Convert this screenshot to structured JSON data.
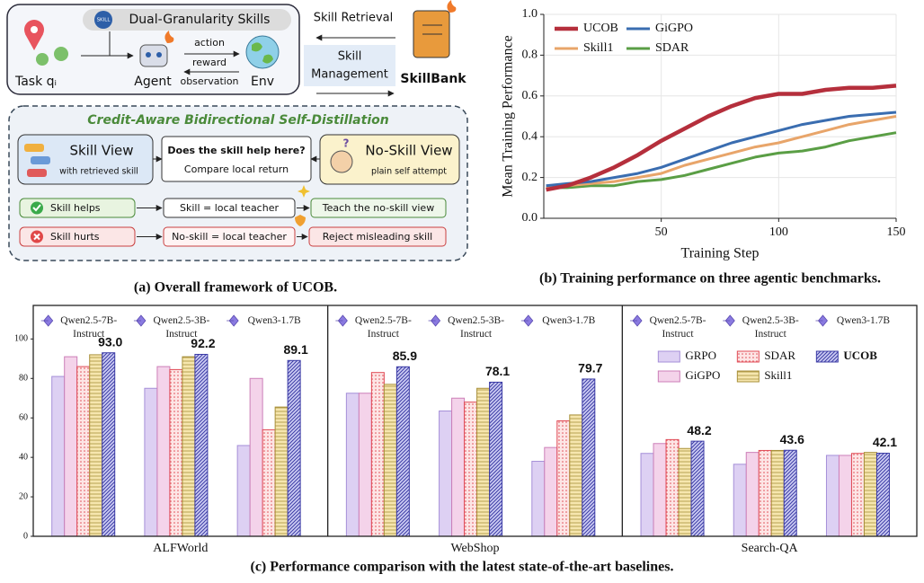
{
  "diagram": {
    "caption": "(a) Overall framework of UCOB.",
    "skills_header": "Dual-Granularity Skills",
    "skill_badge": "SKILL",
    "task": "Task qᵢ",
    "agent": "Agent",
    "env": "Env",
    "action": "action",
    "reward": "reward",
    "observation": "observation",
    "skill_retrieval": "Skill Retrieval",
    "skill_management": [
      "Skill",
      "Management"
    ],
    "skillbank": "SkillBank",
    "distillation_title": "Credit-Aware Bidirectional Self-Distillation",
    "skill_view": {
      "title": "Skill View",
      "subtitle": "with retrieved skill"
    },
    "question": {
      "title": "Does the skill help here?",
      "subtitle": "Compare local return"
    },
    "no_skill_view": {
      "title": "No-Skill View",
      "subtitle": "plain self attempt"
    },
    "rows": [
      [
        "Skill helps",
        "Skill = local teacher",
        "Teach the no-skill view"
      ],
      [
        "Skill hurts",
        "No-skill = local teacher",
        "Reject misleading skill"
      ]
    ]
  },
  "chart_data": [
    {
      "type": "line",
      "caption": "(b) Training performance on three agentic benchmarks.",
      "xlabel": "Training Step",
      "ylabel": "Mean Training Performance",
      "x": [
        1,
        10,
        20,
        30,
        40,
        50,
        60,
        70,
        80,
        90,
        100,
        110,
        120,
        130,
        140,
        150
      ],
      "series": [
        {
          "name": "UCOB",
          "color": "#b52f3c",
          "linewidth": 4.5,
          "values": [
            0.14,
            0.16,
            0.2,
            0.25,
            0.31,
            0.38,
            0.44,
            0.5,
            0.55,
            0.59,
            0.61,
            0.61,
            0.63,
            0.64,
            0.64,
            0.65
          ]
        },
        {
          "name": "GiGPO",
          "color": "#3a6db0",
          "linewidth": 3,
          "values": [
            0.16,
            0.17,
            0.18,
            0.2,
            0.22,
            0.25,
            0.29,
            0.33,
            0.37,
            0.4,
            0.43,
            0.46,
            0.48,
            0.5,
            0.51,
            0.52
          ]
        },
        {
          "name": "Skill1",
          "color": "#e8a56a",
          "linewidth": 3,
          "values": [
            0.15,
            0.16,
            0.17,
            0.18,
            0.2,
            0.22,
            0.26,
            0.29,
            0.32,
            0.35,
            0.37,
            0.4,
            0.43,
            0.46,
            0.48,
            0.5
          ]
        },
        {
          "name": "SDAR",
          "color": "#5a9e45",
          "linewidth": 3,
          "values": [
            0.15,
            0.15,
            0.16,
            0.16,
            0.18,
            0.19,
            0.21,
            0.24,
            0.27,
            0.3,
            0.32,
            0.33,
            0.35,
            0.38,
            0.4,
            0.42
          ]
        }
      ],
      "xlim": [
        0,
        150
      ],
      "ylim": [
        0,
        1
      ],
      "xticks": [
        50,
        100,
        150
      ],
      "yticks": [
        {
          "value": 0,
          "label": "0.0"
        },
        0.2,
        0.4,
        0.6,
        0.8,
        {
          "value": 1,
          "label": "1.0"
        }
      ],
      "grid": true,
      "legend": "upper left"
    },
    {
      "type": "grouped-bar",
      "caption": "(c) Performance comparison with the latest state-of-the-art baselines.",
      "benchmarks": [
        "ALFWorld",
        "WebShop",
        "Search-QA"
      ],
      "categories": [
        "Qwen2.5-7B-Instruct",
        "Qwen2.5-3B-Instruct",
        "Qwen3-1.7B",
        "Qwen2.5-7B-Instruct",
        "Qwen2.5-3B-Instruct",
        "Qwen3-1.7B",
        "Qwen2.5-7B-Instruct",
        "Qwen2.5-3B-Instruct",
        "Qwen3-1.7B"
      ],
      "series": [
        {
          "name": "GRPO",
          "color": "#a58fd8",
          "facecolor": "#ddd0f3",
          "hatch": "none",
          "values": [
            81,
            75,
            46,
            72.5,
            63.5,
            38,
            42,
            36.5,
            41
          ]
        },
        {
          "name": "GiGPO",
          "color": "#cc7fb8",
          "facecolor": "#f4d3ea",
          "hatch": "none",
          "values": [
            91,
            86,
            80,
            72.5,
            70,
            45,
            47,
            42.5,
            41
          ]
        },
        {
          "name": "SDAR",
          "color": "#e04a55",
          "facecolor": "#fde5e5",
          "hatch": "dots",
          "values": [
            86,
            84.5,
            54,
            83,
            68,
            58.5,
            49,
            43.5,
            42
          ]
        },
        {
          "name": "Skill1",
          "color": "#a8903a",
          "facecolor": "#f6e6ae",
          "hatch": "horizontal",
          "values": [
            92,
            91,
            65.5,
            77,
            75,
            61.5,
            44.5,
            43.5,
            42.5
          ]
        },
        {
          "name": "UCOB",
          "color": "#3b3ba5",
          "facecolor": "#cdcdf4",
          "hatch": "diagonal",
          "values": [
            93.0,
            92.2,
            89.1,
            85.9,
            78.1,
            79.7,
            48.2,
            43.6,
            42.1
          ],
          "value_labels": [
            "93.0",
            "92.2",
            "89.1",
            "85.9",
            "78.1",
            "79.7",
            "48.2",
            "43.6",
            "42.1"
          ]
        }
      ],
      "ylim": [
        0,
        117
      ],
      "yticks": [
        0,
        20,
        40,
        60,
        80,
        100
      ]
    }
  ]
}
